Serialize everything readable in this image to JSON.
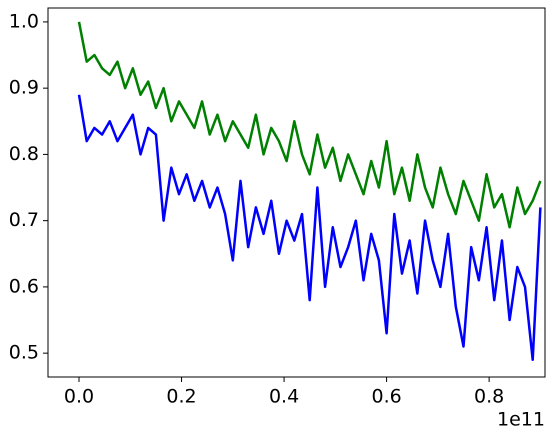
{
  "chart_data": {
    "type": "line",
    "x": [
      0,
      0.015,
      0.03,
      0.045,
      0.06,
      0.075,
      0.09,
      0.105,
      0.12,
      0.135,
      0.15,
      0.165,
      0.18,
      0.195,
      0.21,
      0.225,
      0.24,
      0.255,
      0.27,
      0.285,
      0.3,
      0.315,
      0.33,
      0.345,
      0.36,
      0.375,
      0.39,
      0.405,
      0.42,
      0.435,
      0.45,
      0.465,
      0.48,
      0.495,
      0.51,
      0.525,
      0.54,
      0.555,
      0.57,
      0.585,
      0.6,
      0.615,
      0.63,
      0.645,
      0.66,
      0.675,
      0.69,
      0.705,
      0.72,
      0.735,
      0.75,
      0.765,
      0.78,
      0.795,
      0.81,
      0.825,
      0.84,
      0.855,
      0.87,
      0.885,
      0.9
    ],
    "series": [
      {
        "color": "#008000",
        "values": [
          1.0,
          0.94,
          0.95,
          0.93,
          0.92,
          0.94,
          0.9,
          0.93,
          0.89,
          0.91,
          0.87,
          0.9,
          0.85,
          0.88,
          0.86,
          0.84,
          0.88,
          0.83,
          0.86,
          0.82,
          0.85,
          0.83,
          0.81,
          0.86,
          0.8,
          0.84,
          0.82,
          0.79,
          0.85,
          0.8,
          0.77,
          0.83,
          0.78,
          0.81,
          0.76,
          0.8,
          0.77,
          0.74,
          0.79,
          0.75,
          0.82,
          0.74,
          0.78,
          0.73,
          0.8,
          0.75,
          0.72,
          0.78,
          0.74,
          0.71,
          0.76,
          0.73,
          0.7,
          0.77,
          0.72,
          0.74,
          0.69,
          0.75,
          0.71,
          0.73,
          0.76
        ]
      },
      {
        "color": "#0000ff",
        "values": [
          0.89,
          0.82,
          0.84,
          0.83,
          0.85,
          0.82,
          0.84,
          0.86,
          0.8,
          0.84,
          0.83,
          0.7,
          0.78,
          0.74,
          0.77,
          0.73,
          0.76,
          0.72,
          0.75,
          0.71,
          0.64,
          0.76,
          0.66,
          0.72,
          0.68,
          0.73,
          0.65,
          0.7,
          0.67,
          0.71,
          0.58,
          0.75,
          0.6,
          0.69,
          0.63,
          0.66,
          0.7,
          0.61,
          0.68,
          0.64,
          0.53,
          0.71,
          0.62,
          0.67,
          0.59,
          0.7,
          0.64,
          0.6,
          0.68,
          0.57,
          0.51,
          0.66,
          0.61,
          0.69,
          0.58,
          0.67,
          0.55,
          0.63,
          0.6,
          0.49,
          0.72
        ]
      }
    ],
    "xlim": [
      -0.0605,
      0.909
    ],
    "xticks": [
      {
        "value": 0,
        "label": "0.0"
      },
      0.2,
      0.4,
      0.6,
      0.8
    ],
    "x_offset_label": "1e11",
    "ylim": [
      0.464,
      1.021
    ],
    "yticks": [
      0.5,
      0.6,
      0.7,
      0.8,
      0.9,
      {
        "value": 1,
        "label": "1.0"
      }
    ],
    "grid": false
  }
}
